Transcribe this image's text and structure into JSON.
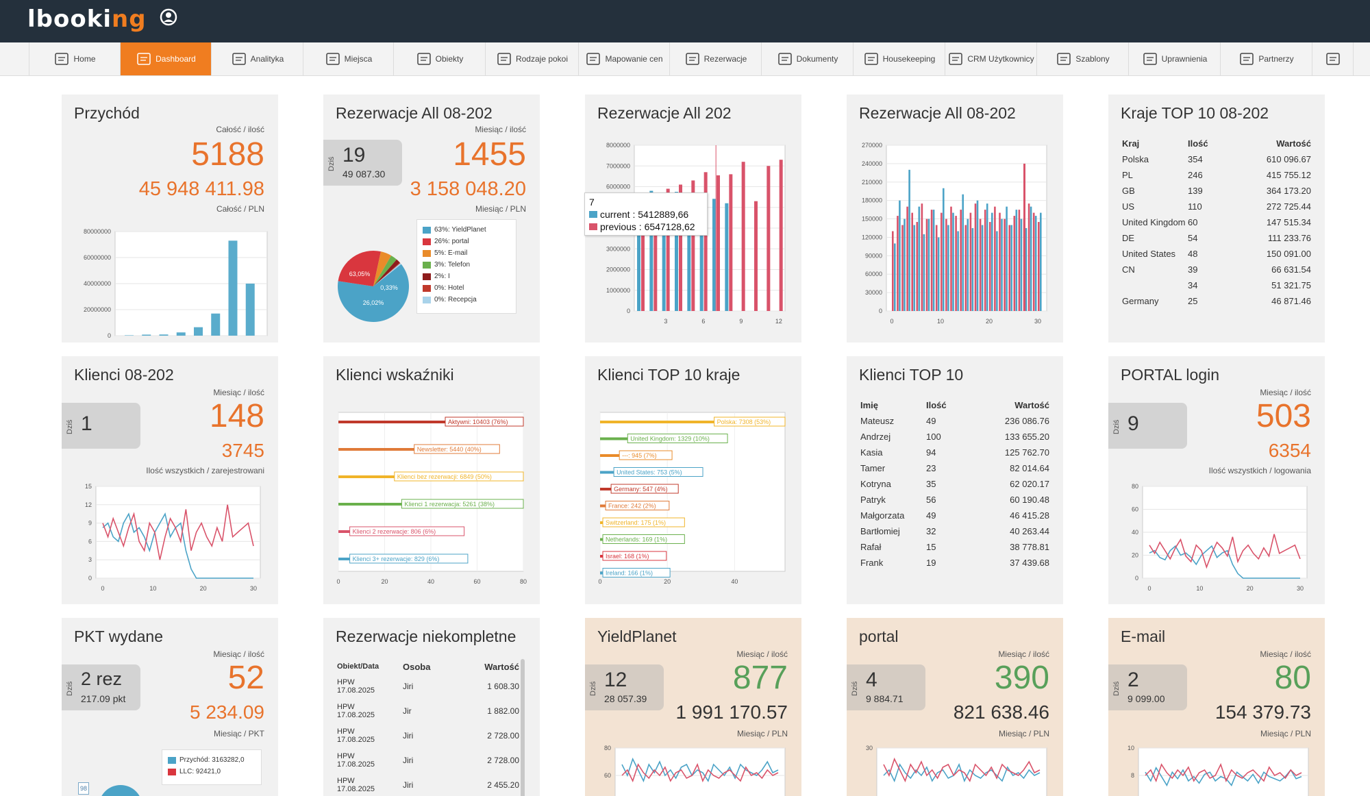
{
  "app": {
    "logo_main": "lbooki",
    "logo_accent": "ng"
  },
  "nav": [
    {
      "label": "Home",
      "icon": "home-icon"
    },
    {
      "label": "Dashboard",
      "icon": "dashboard-icon",
      "active": true
    },
    {
      "label": "Analityka",
      "icon": "analytics-icon"
    },
    {
      "label": "Miejsca",
      "icon": "places-icon"
    },
    {
      "label": "Obiekty",
      "icon": "location-pin-icon"
    },
    {
      "label": "Rodzaje pokoi",
      "icon": "bed-icon"
    },
    {
      "label": "Mapowanie cen",
      "icon": "monitor-icon"
    },
    {
      "label": "Rezerwacje",
      "icon": "reservation-icon"
    },
    {
      "label": "Dokumenty",
      "icon": "documents-icon"
    },
    {
      "label": "Housekeeping",
      "icon": "broom-icon"
    },
    {
      "label": "CRM Użytkownicy",
      "icon": "crm-users-icon"
    },
    {
      "label": "Szablony",
      "icon": "envelope-icon"
    },
    {
      "label": "Uprawnienia",
      "icon": "permissions-icon"
    },
    {
      "label": "Partnerzy",
      "icon": "partners-icon"
    },
    {
      "label": "",
      "icon": "more-icon"
    }
  ],
  "revenue": {
    "title": "Przychód",
    "sub1": "Całość / ilość",
    "big": "5188",
    "mid": "45 948 411.98",
    "sub2": "Całość / PLN"
  },
  "res1": {
    "title": "Rezerwacje All 08-202",
    "today_label": "Dziś",
    "today_val": "19",
    "today_sub": "49 087.30",
    "sub1": "Miesiąc / ilość",
    "big": "1455",
    "mid": "3 158 048.20",
    "sub2": "Miesiąc / PLN",
    "legend": [
      {
        "label": "63%: YieldPlanet",
        "color": "#4ba3c7"
      },
      {
        "label": "26%: portal",
        "color": "#d9363e"
      },
      {
        "label": "5%: E-mail",
        "color": "#e98b2a"
      },
      {
        "label": "3%: Telefon",
        "color": "#6ab04c"
      },
      {
        "label": "2%: I",
        "color": "#8e1c1c"
      },
      {
        "label": "0%: Hotel",
        "color": "#c0392b"
      },
      {
        "label": "0%: Recepcja",
        "color": "#a9d3ea"
      }
    ],
    "pie_labels": [
      "63,05%",
      "0,33%",
      "26,02%"
    ]
  },
  "res2": {
    "title": "Rezerwacje All 202",
    "tooltip_head": "7",
    "tooltip_current": "current : 5412889,66",
    "tooltip_previous": "previous : 6547128,62"
  },
  "res3": {
    "title": "Rezerwacje All 08-202"
  },
  "countries": {
    "title": "Kraje TOP 10 08-202",
    "headers": [
      "Kraj",
      "Ilość",
      "Wartość"
    ],
    "rows": [
      [
        "Polska",
        "354",
        "610 096.67"
      ],
      [
        "PL",
        "246",
        "415 755.12"
      ],
      [
        "GB",
        "139",
        "364 173.20"
      ],
      [
        "US",
        "110",
        "272 725.44"
      ],
      [
        "United Kingdom",
        "60",
        "147 515.34"
      ],
      [
        "DE",
        "54",
        "111 233.76"
      ],
      [
        "United States",
        "48",
        "150 091.00"
      ],
      [
        "CN",
        "39",
        "66 631.54"
      ],
      [
        "",
        "34",
        "51 321.75"
      ],
      [
        "Germany",
        "25",
        "46 871.46"
      ]
    ]
  },
  "clients": {
    "title": "Klienci 08-202",
    "today_label": "Dziś",
    "today_val": "1",
    "sub1": "Miesiąc / ilość",
    "big": "148",
    "mid": "3745",
    "sub2": "Ilość wszystkich / zarejestrowani"
  },
  "indicators": {
    "title": "Klienci wskaźniki"
  },
  "clients_countries": {
    "title": "Klienci TOP 10 kraje"
  },
  "clients_top": {
    "title": "Klienci TOP 10",
    "headers": [
      "Imię",
      "Ilość",
      "Wartość"
    ],
    "rows": [
      [
        "Mateusz",
        "49",
        "236 086.76"
      ],
      [
        "Andrzej",
        "100",
        "133 655.20"
      ],
      [
        "Kasia",
        "94",
        "125 762.70"
      ],
      [
        "Tamer",
        "23",
        "82 014.64"
      ],
      [
        "Kotryna",
        "35",
        "62 020.17"
      ],
      [
        "Patryk",
        "56",
        "60 190.48"
      ],
      [
        "Małgorzata",
        "49",
        "46 415.28"
      ],
      [
        "Bartłomiej",
        "32",
        "40 263.44"
      ],
      [
        "Rafał",
        "15",
        "38 778.81"
      ],
      [
        "Frank",
        "19",
        "37 439.68"
      ]
    ]
  },
  "portal_login": {
    "title": "PORTAL login",
    "today_label": "Dziś",
    "today_val": "9",
    "sub1": "Miesiąc / ilość",
    "big": "503",
    "mid": "6354",
    "sub2": "Ilość wszystkich / logowania"
  },
  "pkt": {
    "title": "PKT wydane",
    "today_label": "Dziś",
    "today_val": "2 rez",
    "today_sub": "217.09 pkt",
    "sub1": "Miesiąc / ilość",
    "big": "52",
    "mid": "5 234.09",
    "sub2": "Miesiąc / PKT",
    "legend": [
      {
        "label": "Przychód: 3163282,0",
        "color": "#4ba3c7"
      },
      {
        "label": "LLC: 92421,0",
        "color": "#d9363e"
      }
    ],
    "badge": "98"
  },
  "incomplete": {
    "title": "Rezerwacje niekompletne",
    "headers": [
      "Obiekt/Data",
      "Osoba",
      "Wartość"
    ],
    "rows": [
      [
        "HPW",
        "17.08.2025",
        "Jiri",
        "1 608.30"
      ],
      [
        "HPW",
        "17.08.2025",
        "Jir",
        "1 882.00"
      ],
      [
        "HPW",
        "17.08.2025",
        "Jiri",
        "2 728.00"
      ],
      [
        "HPW",
        "17.08.2025",
        "Jiri",
        "2 728.00"
      ],
      [
        "HPW",
        "17.08.2025",
        "Jiri",
        "2 455.20"
      ]
    ]
  },
  "yield": {
    "title": "YieldPlanet",
    "today_label": "Dziś",
    "today_val": "12",
    "today_sub": "28 057.39",
    "sub1": "Miesiąc / ilość",
    "big": "877",
    "mid": "1 991 170.57",
    "sub2": "Miesiąc / PLN"
  },
  "portal": {
    "title": "portal",
    "today_label": "Dziś",
    "today_val": "4",
    "today_sub": "9 884.71",
    "sub1": "Miesiąc / ilość",
    "big": "390",
    "mid": "821 638.46",
    "sub2": "Miesiąc / PLN"
  },
  "email": {
    "title": "E-mail",
    "today_label": "Dziś",
    "today_val": "2",
    "today_sub": "9 099.00",
    "sub1": "Miesiąc / ilość",
    "big": "80",
    "mid": "154 379.73",
    "sub2": "Miesiąc / PLN"
  },
  "chart_data": [
    {
      "id": "revenue",
      "type": "bar",
      "y_ticks": [
        "80000000",
        "60000000",
        "40000000",
        "20000000",
        "0"
      ],
      "ylim": [
        0,
        80000000
      ],
      "values": [
        300000,
        800000,
        900000,
        2500000,
        6500000,
        17000000,
        73000000,
        40000000
      ]
    },
    {
      "id": "res2",
      "type": "bar",
      "x_ticks": [
        "3",
        "6",
        "9",
        "12"
      ],
      "y_ticks": [
        "8000000",
        "7000000",
        "6000000",
        "5000000",
        "4000000",
        "3000000",
        "2000000",
        "1000000",
        "0"
      ],
      "ylim": [
        0,
        8000000
      ],
      "series": [
        {
          "name": "current",
          "color": "#4ba3c7",
          "values": [
            5700000,
            5800000,
            5650000,
            5750000,
            5600000,
            5700000,
            5412889.66,
            5200000,
            0,
            0,
            0,
            0
          ]
        },
        {
          "name": "previous",
          "color": "#d9536a",
          "values": [
            5500000,
            5700000,
            5900000,
            6100000,
            6300000,
            6700000,
            6547128.62,
            6600000,
            7200000,
            5300000,
            7000000,
            7300000
          ]
        }
      ]
    },
    {
      "id": "res3",
      "type": "bar",
      "x_ticks": [
        "0",
        "10",
        "20",
        "30"
      ],
      "y_ticks": [
        "270000",
        "240000",
        "210000",
        "180000",
        "150000",
        "120000",
        "90000",
        "60000",
        "30000",
        "0"
      ],
      "ylim": [
        0,
        270000
      ]
    },
    {
      "id": "clients",
      "type": "line",
      "x_ticks": [
        "0",
        "10",
        "20",
        "30"
      ],
      "y_ticks": [
        "15",
        "12",
        "9",
        "6",
        "3",
        "0"
      ],
      "ylim": [
        0,
        15
      ]
    },
    {
      "id": "indicators",
      "type": "bar",
      "x_ticks": [
        "0",
        "20",
        "40",
        "60",
        "80"
      ],
      "xlim": [
        0,
        80
      ],
      "items": [
        {
          "label": "Aktywni: 10403 (76%)",
          "value": 76,
          "color": "#c0392b"
        },
        {
          "label": "Newsletter: 5440 (40%)",
          "value": 40,
          "color": "#e07b39"
        },
        {
          "label": "Klienci bez rezerwacji: 6849 (50%)",
          "value": 50,
          "color": "#f0b429"
        },
        {
          "label": "Klienci 1 rezerwacja: 5261 (38%)",
          "value": 38,
          "color": "#6ab04c"
        },
        {
          "label": "Klienci 2 rezerwacje: 806 (6%)",
          "value": 6,
          "color": "#d9536a"
        },
        {
          "label": "Klienci 3+ rezerwacje: 829 (6%)",
          "value": 6,
          "color": "#4ba3c7"
        }
      ]
    },
    {
      "id": "clients_countries",
      "type": "bar",
      "x_ticks": [
        "0",
        "20",
        "40"
      ],
      "xlim": [
        0,
        55
      ],
      "items": [
        {
          "label": "Polska: 7308 (53%)",
          "value": 53,
          "color": "#f0b429"
        },
        {
          "label": "United Kingdom: 1329 (10%)",
          "value": 10,
          "color": "#6ab04c"
        },
        {
          "label": "---: 945 (7%)",
          "value": 7,
          "color": "#e98b2a"
        },
        {
          "label": "United States: 753 (5%)",
          "value": 5,
          "color": "#4ba3c7"
        },
        {
          "label": "Germany: 547 (4%)",
          "value": 4,
          "color": "#c0392b"
        },
        {
          "label": "France: 242 (2%)",
          "value": 2,
          "color": "#e07b39"
        },
        {
          "label": "Switzerland: 175 (1%)",
          "value": 1,
          "color": "#f0b429"
        },
        {
          "label": "Netherlands: 169 (1%)",
          "value": 1,
          "color": "#6ab04c"
        },
        {
          "label": "Israel: 168 (1%)",
          "value": 1,
          "color": "#d9363e"
        },
        {
          "label": "Ireland: 166 (1%)",
          "value": 1,
          "color": "#4ba3c7"
        }
      ]
    },
    {
      "id": "portal_login",
      "type": "line",
      "x_ticks": [
        "0",
        "10",
        "20",
        "30"
      ],
      "y_ticks": [
        "80",
        "60",
        "40",
        "20",
        "0"
      ],
      "ylim": [
        0,
        80
      ]
    },
    {
      "id": "yield",
      "type": "line",
      "y_ticks": [
        "80",
        "60",
        "40"
      ]
    },
    {
      "id": "portal",
      "type": "line",
      "y_ticks": [
        "30",
        "20"
      ]
    },
    {
      "id": "email",
      "type": "line",
      "y_ticks": [
        "10",
        "8",
        "6"
      ]
    }
  ]
}
